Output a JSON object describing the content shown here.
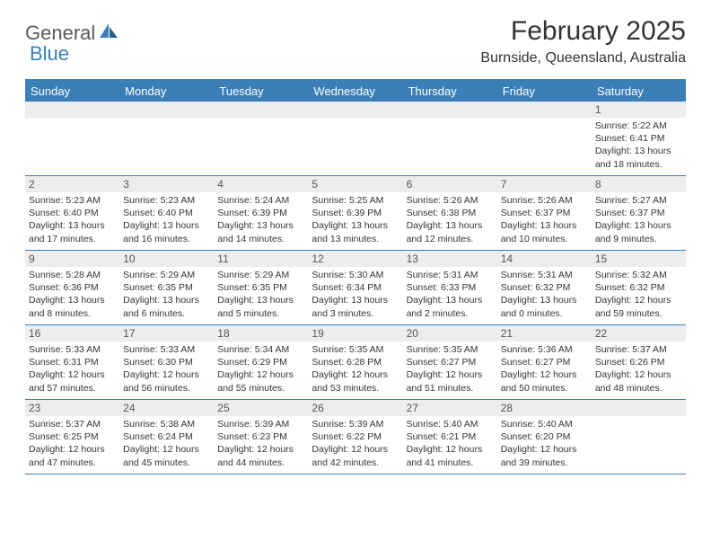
{
  "brand": {
    "part1": "General",
    "part2": "Blue"
  },
  "title": "February 2025",
  "location": "Burnside, Queensland, Australia",
  "colors": {
    "accent": "#3a7fb8",
    "header_bg": "#3a7fb8",
    "header_text": "#ffffff",
    "daynum_bg": "#ededed",
    "daynum_text": "#555555",
    "body_text": "#353535",
    "logo_gray": "#5a5a5a",
    "title_text": "#333333"
  },
  "typography": {
    "title_fontsize": 30,
    "location_fontsize": 16,
    "dayheader_fontsize": 13,
    "daynum_fontsize": 12,
    "dayinfo_fontsize": 10.5,
    "logo_fontsize": 22
  },
  "calendar": {
    "type": "table",
    "day_names": [
      "Sunday",
      "Monday",
      "Tuesday",
      "Wednesday",
      "Thursday",
      "Friday",
      "Saturday"
    ],
    "weeks": [
      [
        {
          "day": "",
          "sunrise": "",
          "sunset": "",
          "daylight": ""
        },
        {
          "day": "",
          "sunrise": "",
          "sunset": "",
          "daylight": ""
        },
        {
          "day": "",
          "sunrise": "",
          "sunset": "",
          "daylight": ""
        },
        {
          "day": "",
          "sunrise": "",
          "sunset": "",
          "daylight": ""
        },
        {
          "day": "",
          "sunrise": "",
          "sunset": "",
          "daylight": ""
        },
        {
          "day": "",
          "sunrise": "",
          "sunset": "",
          "daylight": ""
        },
        {
          "day": "1",
          "sunrise": "Sunrise: 5:22 AM",
          "sunset": "Sunset: 6:41 PM",
          "daylight": "Daylight: 13 hours and 18 minutes."
        }
      ],
      [
        {
          "day": "2",
          "sunrise": "Sunrise: 5:23 AM",
          "sunset": "Sunset: 6:40 PM",
          "daylight": "Daylight: 13 hours and 17 minutes."
        },
        {
          "day": "3",
          "sunrise": "Sunrise: 5:23 AM",
          "sunset": "Sunset: 6:40 PM",
          "daylight": "Daylight: 13 hours and 16 minutes."
        },
        {
          "day": "4",
          "sunrise": "Sunrise: 5:24 AM",
          "sunset": "Sunset: 6:39 PM",
          "daylight": "Daylight: 13 hours and 14 minutes."
        },
        {
          "day": "5",
          "sunrise": "Sunrise: 5:25 AM",
          "sunset": "Sunset: 6:39 PM",
          "daylight": "Daylight: 13 hours and 13 minutes."
        },
        {
          "day": "6",
          "sunrise": "Sunrise: 5:26 AM",
          "sunset": "Sunset: 6:38 PM",
          "daylight": "Daylight: 13 hours and 12 minutes."
        },
        {
          "day": "7",
          "sunrise": "Sunrise: 5:26 AM",
          "sunset": "Sunset: 6:37 PM",
          "daylight": "Daylight: 13 hours and 10 minutes."
        },
        {
          "day": "8",
          "sunrise": "Sunrise: 5:27 AM",
          "sunset": "Sunset: 6:37 PM",
          "daylight": "Daylight: 13 hours and 9 minutes."
        }
      ],
      [
        {
          "day": "9",
          "sunrise": "Sunrise: 5:28 AM",
          "sunset": "Sunset: 6:36 PM",
          "daylight": "Daylight: 13 hours and 8 minutes."
        },
        {
          "day": "10",
          "sunrise": "Sunrise: 5:29 AM",
          "sunset": "Sunset: 6:35 PM",
          "daylight": "Daylight: 13 hours and 6 minutes."
        },
        {
          "day": "11",
          "sunrise": "Sunrise: 5:29 AM",
          "sunset": "Sunset: 6:35 PM",
          "daylight": "Daylight: 13 hours and 5 minutes."
        },
        {
          "day": "12",
          "sunrise": "Sunrise: 5:30 AM",
          "sunset": "Sunset: 6:34 PM",
          "daylight": "Daylight: 13 hours and 3 minutes."
        },
        {
          "day": "13",
          "sunrise": "Sunrise: 5:31 AM",
          "sunset": "Sunset: 6:33 PM",
          "daylight": "Daylight: 13 hours and 2 minutes."
        },
        {
          "day": "14",
          "sunrise": "Sunrise: 5:31 AM",
          "sunset": "Sunset: 6:32 PM",
          "daylight": "Daylight: 13 hours and 0 minutes."
        },
        {
          "day": "15",
          "sunrise": "Sunrise: 5:32 AM",
          "sunset": "Sunset: 6:32 PM",
          "daylight": "Daylight: 12 hours and 59 minutes."
        }
      ],
      [
        {
          "day": "16",
          "sunrise": "Sunrise: 5:33 AM",
          "sunset": "Sunset: 6:31 PM",
          "daylight": "Daylight: 12 hours and 57 minutes."
        },
        {
          "day": "17",
          "sunrise": "Sunrise: 5:33 AM",
          "sunset": "Sunset: 6:30 PM",
          "daylight": "Daylight: 12 hours and 56 minutes."
        },
        {
          "day": "18",
          "sunrise": "Sunrise: 5:34 AM",
          "sunset": "Sunset: 6:29 PM",
          "daylight": "Daylight: 12 hours and 55 minutes."
        },
        {
          "day": "19",
          "sunrise": "Sunrise: 5:35 AM",
          "sunset": "Sunset: 6:28 PM",
          "daylight": "Daylight: 12 hours and 53 minutes."
        },
        {
          "day": "20",
          "sunrise": "Sunrise: 5:35 AM",
          "sunset": "Sunset: 6:27 PM",
          "daylight": "Daylight: 12 hours and 51 minutes."
        },
        {
          "day": "21",
          "sunrise": "Sunrise: 5:36 AM",
          "sunset": "Sunset: 6:27 PM",
          "daylight": "Daylight: 12 hours and 50 minutes."
        },
        {
          "day": "22",
          "sunrise": "Sunrise: 5:37 AM",
          "sunset": "Sunset: 6:26 PM",
          "daylight": "Daylight: 12 hours and 48 minutes."
        }
      ],
      [
        {
          "day": "23",
          "sunrise": "Sunrise: 5:37 AM",
          "sunset": "Sunset: 6:25 PM",
          "daylight": "Daylight: 12 hours and 47 minutes."
        },
        {
          "day": "24",
          "sunrise": "Sunrise: 5:38 AM",
          "sunset": "Sunset: 6:24 PM",
          "daylight": "Daylight: 12 hours and 45 minutes."
        },
        {
          "day": "25",
          "sunrise": "Sunrise: 5:39 AM",
          "sunset": "Sunset: 6:23 PM",
          "daylight": "Daylight: 12 hours and 44 minutes."
        },
        {
          "day": "26",
          "sunrise": "Sunrise: 5:39 AM",
          "sunset": "Sunset: 6:22 PM",
          "daylight": "Daylight: 12 hours and 42 minutes."
        },
        {
          "day": "27",
          "sunrise": "Sunrise: 5:40 AM",
          "sunset": "Sunset: 6:21 PM",
          "daylight": "Daylight: 12 hours and 41 minutes."
        },
        {
          "day": "28",
          "sunrise": "Sunrise: 5:40 AM",
          "sunset": "Sunset: 6:20 PM",
          "daylight": "Daylight: 12 hours and 39 minutes."
        },
        {
          "day": "",
          "sunrise": "",
          "sunset": "",
          "daylight": ""
        }
      ]
    ]
  }
}
